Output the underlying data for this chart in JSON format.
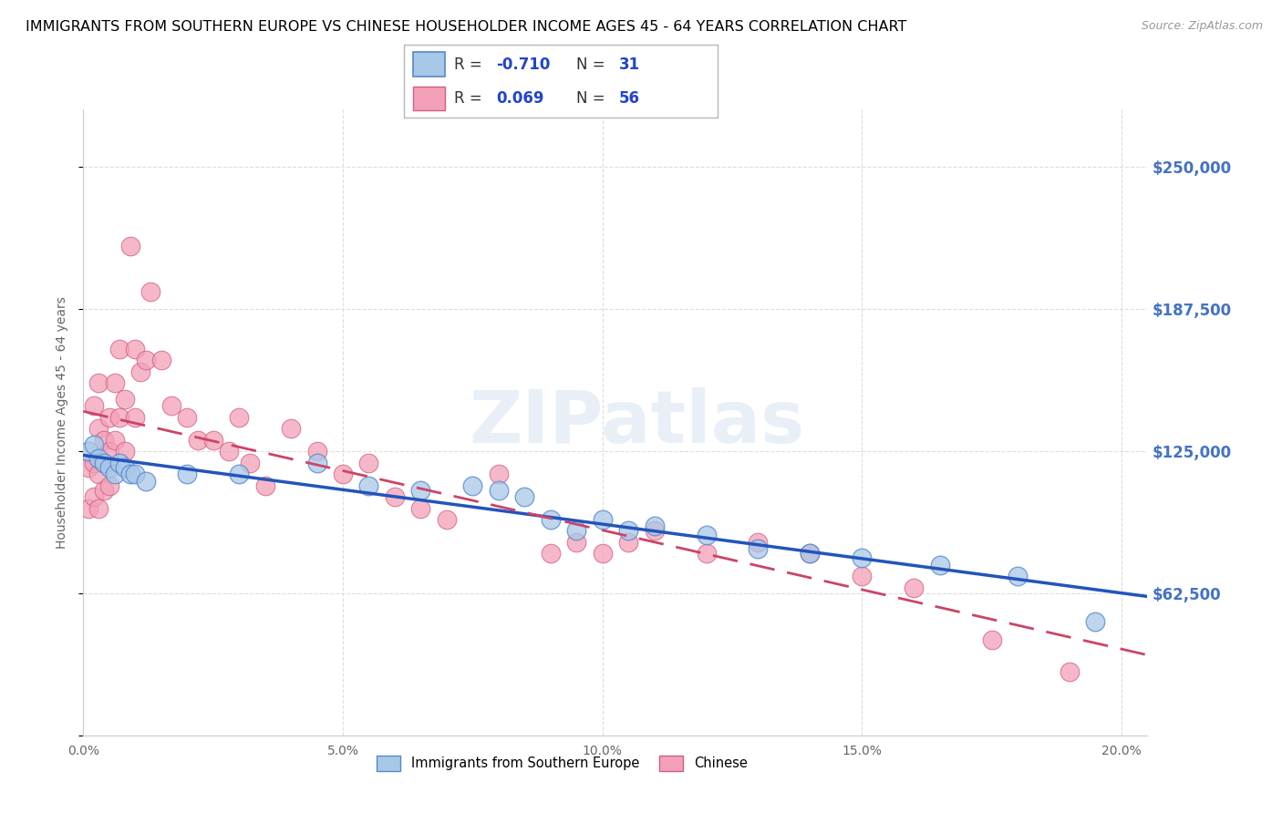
{
  "title": "IMMIGRANTS FROM SOUTHERN EUROPE VS CHINESE HOUSEHOLDER INCOME AGES 45 - 64 YEARS CORRELATION CHART",
  "source": "Source: ZipAtlas.com",
  "ylabel": "Householder Income Ages 45 - 64 years",
  "xlim": [
    0.0,
    0.205
  ],
  "ylim": [
    0,
    275000
  ],
  "yticks": [
    0,
    62500,
    125000,
    187500,
    250000
  ],
  "ytick_labels": [
    "",
    "$62,500",
    "$125,000",
    "$187,500",
    "$250,000"
  ],
  "xticks": [
    0.0,
    0.05,
    0.1,
    0.15,
    0.2
  ],
  "xtick_labels": [
    "0.0%",
    "5.0%",
    "10.0%",
    "15.0%",
    "20.0%"
  ],
  "series1_name": "Immigrants from Southern Europe",
  "series1_R": "-0.710",
  "series1_N": "31",
  "series1_color": "#A8C8E8",
  "series1_edge_color": "#5588CC",
  "series1_line_color": "#2255BB",
  "series2_name": "Chinese",
  "series2_R": "0.069",
  "series2_N": "56",
  "series2_color": "#F4A0B8",
  "series2_edge_color": "#D06080",
  "series2_line_color": "#CC4466",
  "background_color": "#FFFFFF",
  "watermark": "ZIPatlas",
  "title_fontsize": 11.5,
  "series1_x": [
    0.001,
    0.002,
    0.003,
    0.004,
    0.005,
    0.006,
    0.007,
    0.008,
    0.009,
    0.01,
    0.012,
    0.02,
    0.03,
    0.045,
    0.055,
    0.065,
    0.075,
    0.08,
    0.085,
    0.09,
    0.095,
    0.1,
    0.105,
    0.11,
    0.12,
    0.13,
    0.14,
    0.15,
    0.165,
    0.18,
    0.195
  ],
  "series1_y": [
    125000,
    128000,
    122000,
    120000,
    118000,
    115000,
    120000,
    118000,
    115000,
    115000,
    112000,
    115000,
    115000,
    120000,
    110000,
    108000,
    110000,
    108000,
    105000,
    95000,
    90000,
    95000,
    90000,
    92000,
    88000,
    82000,
    80000,
    78000,
    75000,
    70000,
    50000
  ],
  "series2_x": [
    0.001,
    0.001,
    0.002,
    0.002,
    0.002,
    0.003,
    0.003,
    0.003,
    0.003,
    0.004,
    0.004,
    0.004,
    0.005,
    0.005,
    0.005,
    0.006,
    0.006,
    0.007,
    0.007,
    0.008,
    0.008,
    0.009,
    0.01,
    0.01,
    0.011,
    0.012,
    0.013,
    0.015,
    0.017,
    0.02,
    0.022,
    0.025,
    0.028,
    0.03,
    0.032,
    0.035,
    0.04,
    0.045,
    0.05,
    0.055,
    0.06,
    0.065,
    0.07,
    0.08,
    0.09,
    0.095,
    0.1,
    0.105,
    0.11,
    0.12,
    0.13,
    0.14,
    0.15,
    0.16,
    0.175,
    0.19
  ],
  "series2_y": [
    118000,
    100000,
    145000,
    120000,
    105000,
    155000,
    135000,
    115000,
    100000,
    130000,
    120000,
    108000,
    140000,
    125000,
    110000,
    155000,
    130000,
    170000,
    140000,
    148000,
    125000,
    215000,
    170000,
    140000,
    160000,
    165000,
    195000,
    165000,
    145000,
    140000,
    130000,
    130000,
    125000,
    140000,
    120000,
    110000,
    135000,
    125000,
    115000,
    120000,
    105000,
    100000,
    95000,
    115000,
    80000,
    85000,
    80000,
    85000,
    90000,
    80000,
    85000,
    80000,
    70000,
    65000,
    42000,
    28000
  ]
}
